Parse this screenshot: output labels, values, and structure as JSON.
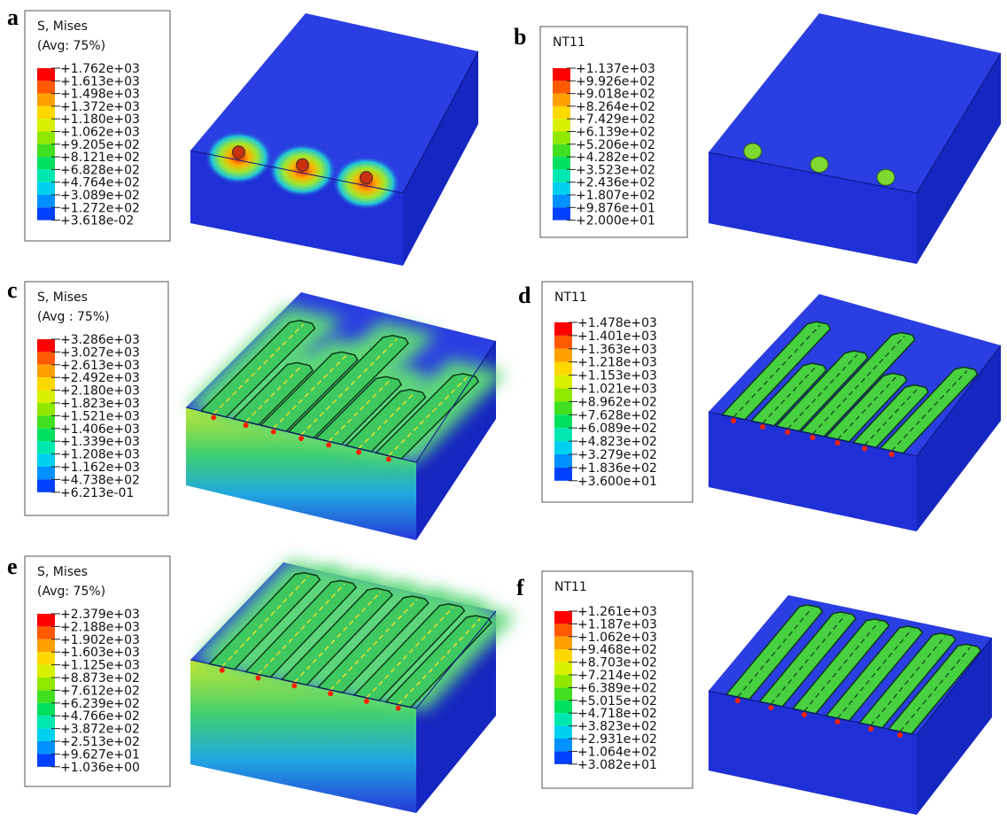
{
  "panels": [
    {
      "label": "a",
      "legend": {
        "title": "S, Mises",
        "subtitle": "(Avg: 75%)",
        "ticks": [
          "+1.762e+03",
          "+1.613e+03",
          "+1.498e+03",
          "+1.372e+03",
          "+1.180e+03",
          "+1.062e+03",
          "+9.205e+02",
          "+8.121e+02",
          "+6.828e+02",
          "+4.764e+02",
          "+3.089e+02",
          "+1.272e+02",
          "+3.618e-02"
        ]
      }
    },
    {
      "label": "b",
      "legend": {
        "title": "NT11",
        "ticks": [
          "+1.137e+03",
          "+9.926e+02",
          "+9.018e+02",
          "+8.264e+02",
          "+7.429e+02",
          "+6.139e+02",
          "+5.206e+02",
          "+4.282e+02",
          "+3.523e+02",
          "+2.436e+02",
          "+1.807e+02",
          "+9.876e+01",
          "+2.000e+01"
        ]
      }
    },
    {
      "label": "c",
      "legend": {
        "title": "S, Mises",
        "subtitle": "(Avg : 75%)",
        "ticks": [
          "+3.286e+03",
          "+3.027e+03",
          "+2.613e+03",
          "+2.492e+03",
          "+2.180e+03",
          "+1.823e+03",
          "+1.521e+03",
          "+1.406e+03",
          "+1.339e+03",
          "+1.208e+03",
          "+1.162e+03",
          "+4.738e+02",
          "+6.213e-01"
        ]
      }
    },
    {
      "label": "d",
      "legend": {
        "title": "NT11",
        "ticks": [
          "+1.478e+03",
          "+1.401e+03",
          "+1.363e+03",
          "+1.218e+03",
          "+1.153e+03",
          "+1.021e+03",
          "+8.962e+02",
          "+7.628e+02",
          "+6.089e+02",
          "+4.823e+02",
          "+3.279e+02",
          "+1.836e+02",
          "+3.600e+01"
        ]
      }
    },
    {
      "label": "e",
      "legend": {
        "title": "S, Mises",
        "subtitle": "(Avg: 75%)",
        "ticks": [
          "+2.379e+03",
          "+2.188e+03",
          "+1.902e+03",
          "+1.603e+03",
          "+1.125e+03",
          "+8.873e+02",
          "+7.612e+02",
          "+6.239e+02",
          "+4.766e+02",
          "+3.872e+02",
          "+2.513e+02",
          "+9.627e+01",
          "+1.036e+00"
        ]
      }
    },
    {
      "label": "f",
      "legend": {
        "title": "NT11",
        "ticks": [
          "+1.261e+03",
          "+1.187e+03",
          "+1.062e+03",
          "+9.468e+02",
          "+8.703e+02",
          "+7.214e+02",
          "+6.389e+02",
          "+5.015e+02",
          "+4.718e+02",
          "+3.823e+02",
          "+2.931e+02",
          "+1.064e+02",
          "+3.082e+01"
        ]
      }
    }
  ]
}
